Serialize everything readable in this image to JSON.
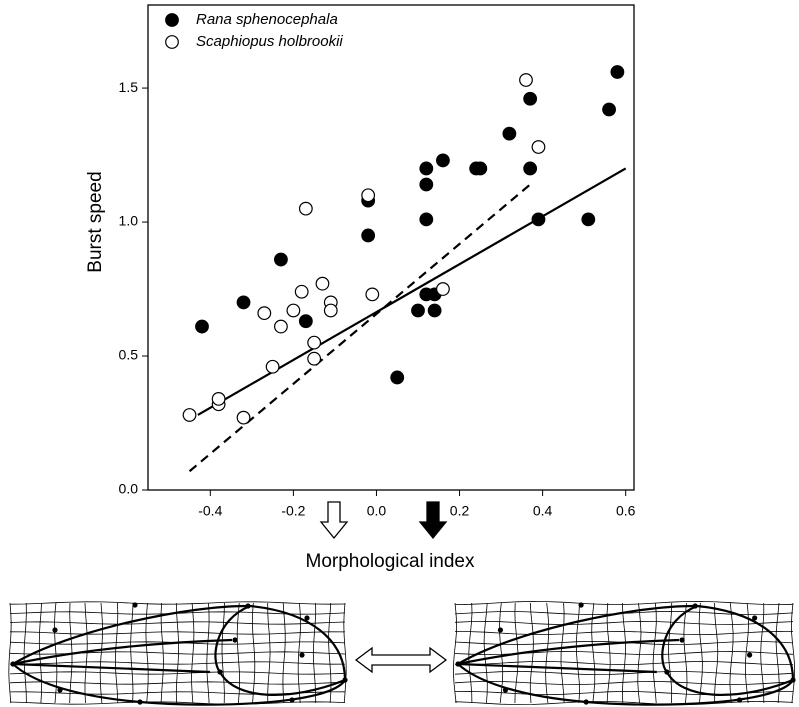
{
  "chart_data": {
    "type": "scatter",
    "xlabel": "Morphological index",
    "ylabel": "Burst speed",
    "xlim": [
      -0.55,
      0.62
    ],
    "ylim": [
      0,
      1.81
    ],
    "xticks": [
      -0.4,
      -0.2,
      {
        "value": 0,
        "label": "0.0"
      },
      0.2,
      0.4,
      0.6
    ],
    "yticks": [
      {
        "value": 0,
        "label": "0.0"
      },
      0.5,
      {
        "value": 1,
        "label": "1.0"
      },
      1.5
    ],
    "legend": "upper left",
    "series": [
      {
        "name": "Rana sphenocephala",
        "color": "#000000",
        "marker": "filled",
        "x": [
          -0.42,
          -0.32,
          -0.23,
          -0.17,
          -0.02,
          -0.02,
          0.05,
          0.1,
          0.12,
          0.14,
          0.14,
          0.12,
          0.12,
          0.12,
          0.16,
          0.24,
          0.25,
          0.32,
          0.37,
          0.37,
          0.39,
          0.51,
          0.56,
          0.58
        ],
        "values": [
          0.61,
          0.7,
          0.86,
          0.63,
          0.95,
          1.08,
          0.42,
          0.67,
          0.73,
          0.73,
          0.67,
          1.01,
          1.14,
          1.2,
          1.23,
          1.2,
          1.2,
          1.33,
          1.46,
          1.2,
          1.01,
          1.01,
          1.42,
          1.56
        ]
      },
      {
        "name": "Scaphiopus holbrookii",
        "color": "#000000",
        "marker": "open",
        "x": [
          -0.45,
          -0.38,
          -0.38,
          -0.32,
          -0.25,
          -0.27,
          -0.23,
          -0.2,
          -0.18,
          -0.17,
          -0.15,
          -0.15,
          -0.13,
          -0.11,
          -0.11,
          -0.02,
          -0.01,
          0.16,
          0.36,
          0.39
        ],
        "values": [
          0.28,
          0.32,
          0.34,
          0.27,
          0.46,
          0.66,
          0.61,
          0.67,
          0.74,
          1.05,
          0.55,
          0.49,
          0.77,
          0.7,
          0.67,
          1.1,
          0.73,
          0.75,
          1.53,
          1.28
        ]
      }
    ],
    "lines": [
      {
        "style": "solid",
        "x": [
          -0.43,
          0.6
        ],
        "values": [
          0.28,
          1.2
        ]
      },
      {
        "style": "dashed",
        "x": [
          -0.45,
          0.37
        ],
        "values": [
          0.07,
          1.14
        ]
      }
    ]
  }
}
